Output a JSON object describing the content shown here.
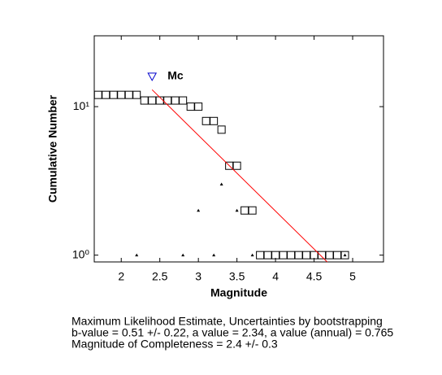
{
  "chart_data": {
    "type": "scatter",
    "xlabel": "Magnitude",
    "ylabel": "Cumulative Number",
    "xlim": [
      1.65,
      5.4
    ],
    "ylim": [
      0.9,
      30
    ],
    "ylog": true,
    "xticks": [
      2,
      2.5,
      3,
      3.5,
      4,
      4.5,
      5
    ],
    "yticks": [
      {
        "value": 1,
        "label": "10⁰"
      },
      {
        "value": 10,
        "label": "10¹"
      }
    ],
    "series": [
      {
        "marker": "square",
        "color": "#000000",
        "x": [
          1.7,
          1.8,
          1.9,
          2.0,
          2.1,
          2.2,
          2.3,
          2.4,
          2.5,
          2.6,
          2.7,
          2.8,
          2.9,
          3.0,
          3.1,
          3.2,
          3.3,
          3.4,
          3.5,
          3.6,
          3.7,
          3.8,
          3.9,
          4.0,
          4.1,
          4.2,
          4.3,
          4.4,
          4.5,
          4.6,
          4.7,
          4.8,
          4.9
        ],
        "values": [
          12,
          12,
          12,
          12,
          12,
          12,
          11,
          11,
          11,
          11,
          11,
          11,
          10,
          10,
          8,
          8,
          7,
          4,
          4,
          2,
          2,
          1,
          1,
          1,
          1,
          1,
          1,
          1,
          1,
          1,
          1,
          1,
          1
        ]
      },
      {
        "marker": "triangle",
        "color": "#000000",
        "x": [
          2.2,
          2.8,
          3.0,
          3.2,
          3.3,
          3.5,
          3.7,
          4.9
        ],
        "values": [
          1,
          1,
          2,
          1,
          3,
          2,
          1,
          1
        ]
      },
      {
        "marker": "line",
        "color": "#ff0000",
        "x": [
          2.4,
          4.67
        ],
        "values": [
          13,
          0.9
        ]
      },
      {
        "name": "Mc",
        "marker": "inverted-triangle",
        "color": "#0000cc",
        "x": [
          2.4
        ],
        "values": [
          16
        ]
      }
    ],
    "notes": [
      "Maximum Likelihood Estimate, Uncertainties by bootstrapping",
      "b-value = 0.51 +/- 0.22,  a value = 2.34,  a value (annual) = 0.765",
      "Magnitude of Completeness = 2.4 +/- 0.3"
    ]
  }
}
